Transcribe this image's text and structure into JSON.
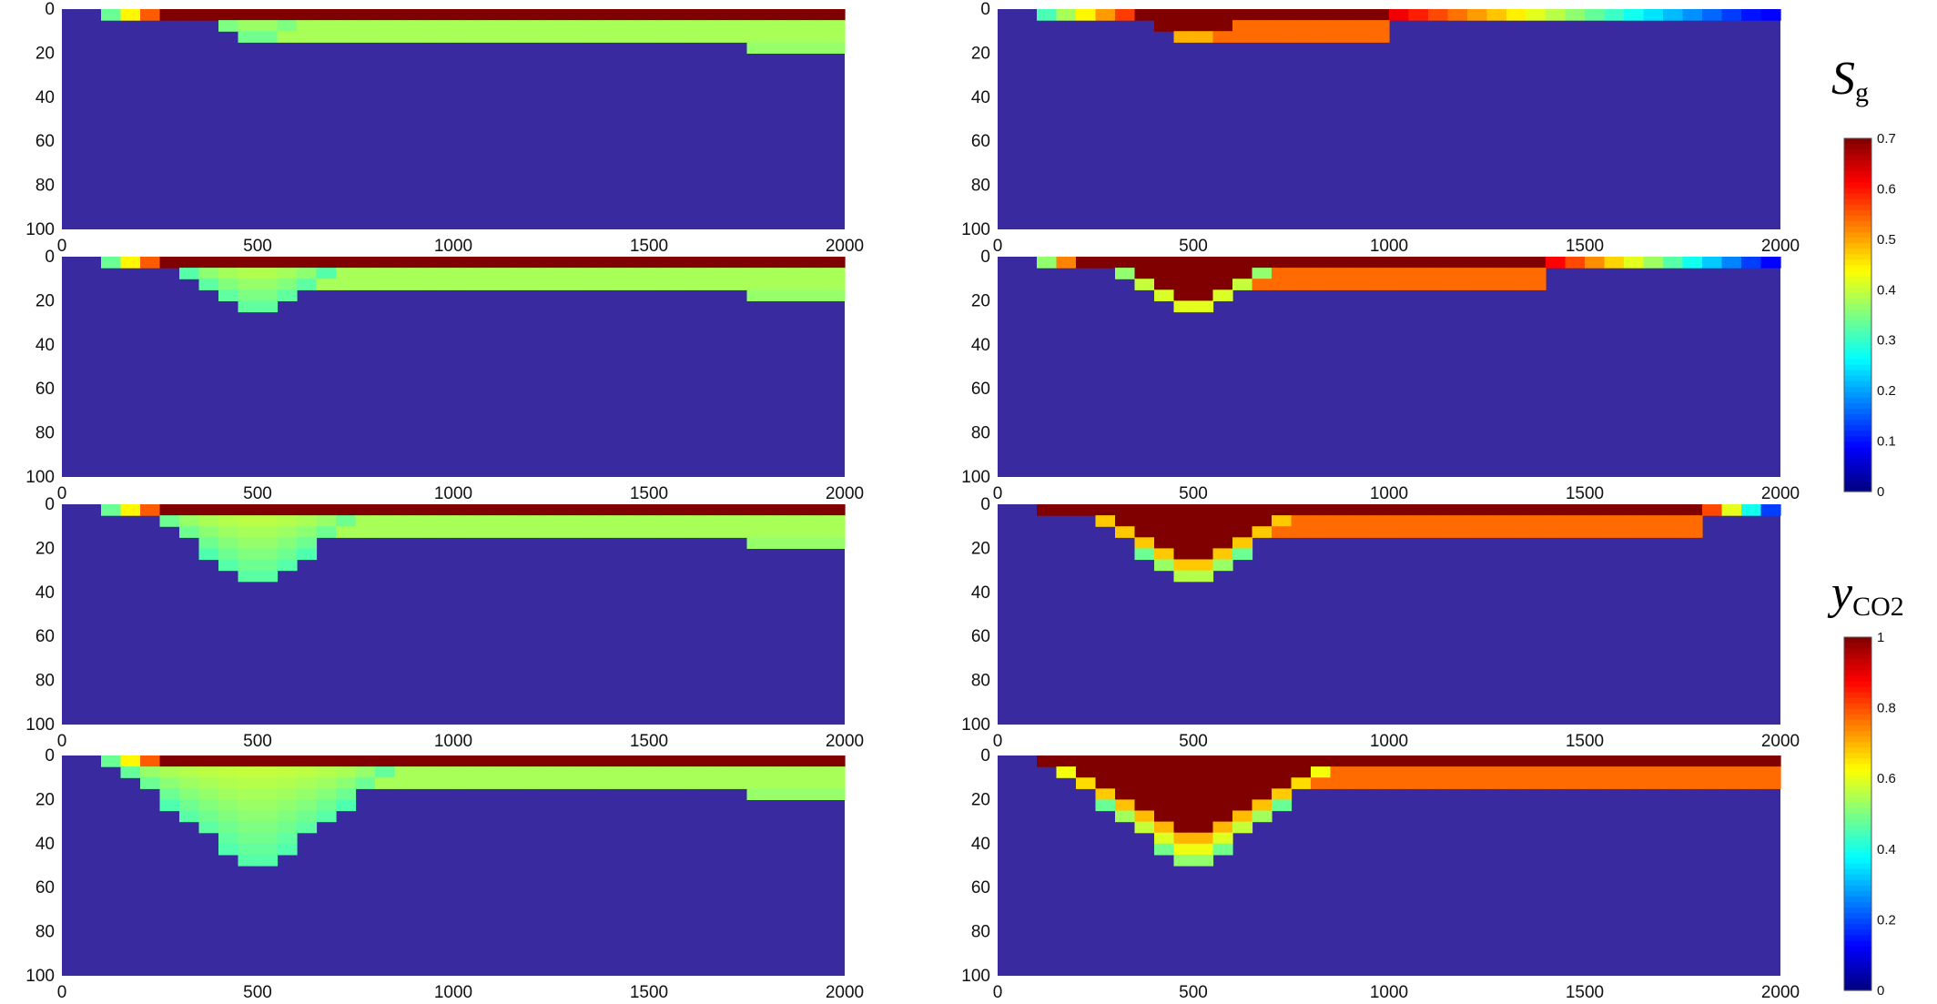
{
  "chart_data": {
    "type": "heatmap",
    "colormap": "jet",
    "grid": "off",
    "panels_layout": "4 rows x 2 columns",
    "x_range": [
      0,
      2000
    ],
    "y_range": [
      0,
      100
    ],
    "y_inverted": true,
    "x_ticks": [
      "0",
      "500",
      "1000",
      "1500",
      "2000"
    ],
    "y_ticks": [
      "0",
      "20",
      "40",
      "60",
      "80",
      "100"
    ],
    "background_value": 0,
    "panels": [
      {
        "column": "left",
        "variable": "Sg",
        "row": 1,
        "top_value": 0.7,
        "top_extent": [
          250,
          2000
        ],
        "plume_center_x": 500,
        "plume_depth_at_center": 20
      },
      {
        "column": "left",
        "variable": "Sg",
        "row": 2,
        "top_value": 0.7,
        "top_extent": [
          250,
          2000
        ],
        "plume_center_x": 500,
        "plume_depth_at_center": 30
      },
      {
        "column": "left",
        "variable": "Sg",
        "row": 3,
        "top_value": 0.7,
        "top_extent": [
          250,
          2000
        ],
        "plume_center_x": 500,
        "plume_depth_at_center": 40
      },
      {
        "column": "left",
        "variable": "Sg",
        "row": 4,
        "top_value": 0.7,
        "top_extent": [
          250,
          2000
        ],
        "plume_center_x": 500,
        "plume_depth_at_center": 55
      },
      {
        "column": "right",
        "variable": "yCO2",
        "row": 1,
        "top_value": 1.0,
        "top_extent": [
          350,
          1000
        ],
        "plume_center_x": 500,
        "plume_depth_at_center": 20
      },
      {
        "column": "right",
        "variable": "yCO2",
        "row": 2,
        "top_value": 1.0,
        "top_extent": [
          200,
          1400
        ],
        "plume_center_x": 500,
        "plume_depth_at_center": 30
      },
      {
        "column": "right",
        "variable": "yCO2",
        "row": 3,
        "top_value": 1.0,
        "top_extent": [
          100,
          1800
        ],
        "plume_center_x": 500,
        "plume_depth_at_center": 40
      },
      {
        "column": "right",
        "variable": "yCO2",
        "row": 4,
        "top_value": 1.0,
        "top_extent": [
          100,
          2000
        ],
        "plume_center_x": 500,
        "plume_depth_at_center": 55
      }
    ],
    "colorbars": [
      {
        "label_symbol": "S",
        "label_sub": "g",
        "range": [
          0,
          0.7
        ],
        "ticks": [
          "0",
          "0.1",
          "0.2",
          "0.3",
          "0.4",
          "0.5",
          "0.6",
          "0.7"
        ]
      },
      {
        "label_symbol": "y",
        "label_sub": "CO2",
        "range": [
          0,
          1
        ],
        "ticks": [
          "0",
          "0.2",
          "0.4",
          "0.6",
          "0.8",
          "1"
        ]
      }
    ]
  }
}
